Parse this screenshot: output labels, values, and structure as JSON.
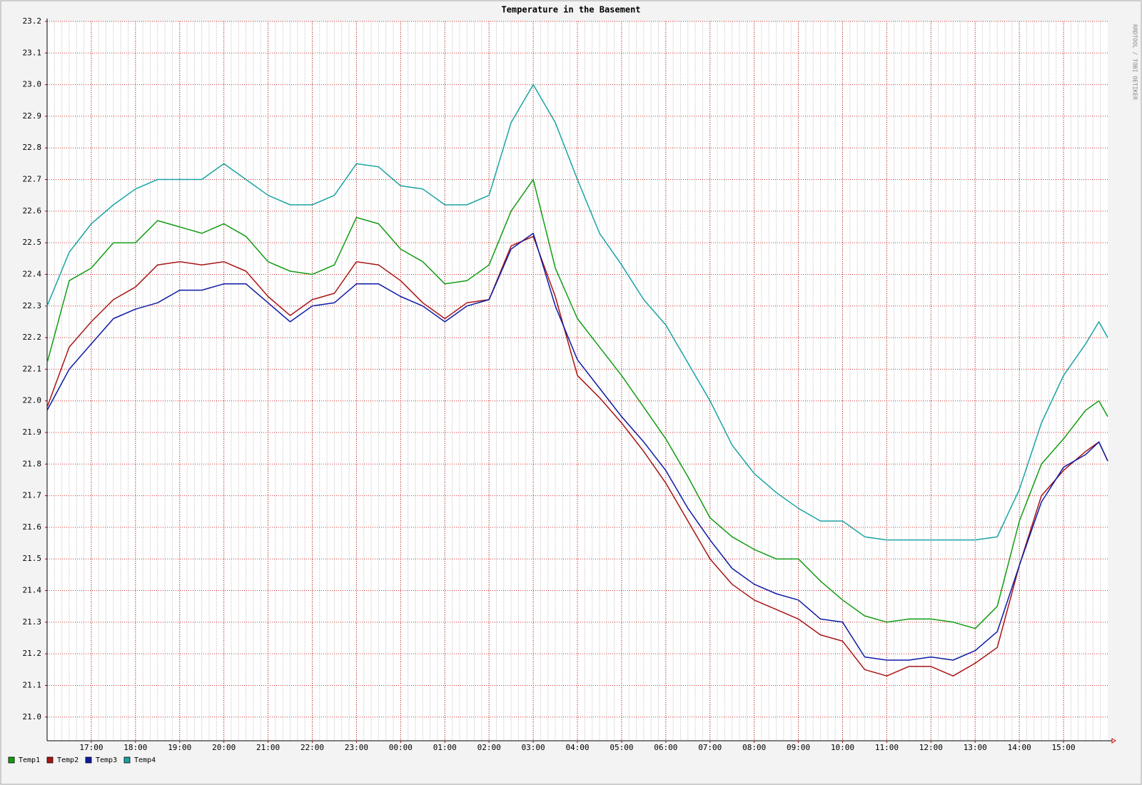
{
  "chart_data": {
    "type": "line",
    "title": "Temperature in the Basement",
    "watermark": "RRDTOOL / TOBI OETIKER",
    "x": [
      16,
      16.5,
      17,
      17.5,
      18,
      18.5,
      19,
      19.5,
      20,
      20.5,
      21,
      21.5,
      22,
      22.5,
      23,
      23.5,
      24,
      24.5,
      25,
      25.5,
      26,
      26.5,
      27,
      27.5,
      28,
      28.5,
      29,
      29.5,
      30,
      30.5,
      31,
      31.5,
      32,
      32.5,
      33,
      33.5,
      34,
      34.5,
      35,
      35.5,
      36,
      36.5,
      37,
      37.5,
      38,
      38.5,
      39,
      39.5,
      39.8,
      40
    ],
    "series": [
      {
        "name": "Temp1",
        "color": "#139c13",
        "values": [
          22.12,
          22.38,
          22.42,
          22.5,
          22.5,
          22.57,
          22.55,
          22.53,
          22.56,
          22.52,
          22.44,
          22.41,
          22.4,
          22.43,
          22.58,
          22.56,
          22.48,
          22.44,
          22.37,
          22.38,
          22.43,
          22.6,
          22.7,
          22.42,
          22.26,
          22.17,
          22.08,
          21.98,
          21.88,
          21.76,
          21.63,
          21.57,
          21.53,
          21.5,
          21.5,
          21.43,
          21.37,
          21.32,
          21.3,
          21.31,
          21.31,
          21.3,
          21.28,
          21.35,
          21.62,
          21.8,
          21.88,
          21.97,
          22.0,
          21.95
        ]
      },
      {
        "name": "Temp2",
        "color": "#a81515",
        "values": [
          21.98,
          22.17,
          22.25,
          22.32,
          22.36,
          22.43,
          22.44,
          22.43,
          22.44,
          22.41,
          22.33,
          22.27,
          22.32,
          22.34,
          22.44,
          22.43,
          22.38,
          22.31,
          22.26,
          22.31,
          22.32,
          22.49,
          22.52,
          22.33,
          22.08,
          22.01,
          21.93,
          21.84,
          21.74,
          21.62,
          21.5,
          21.42,
          21.37,
          21.34,
          21.31,
          21.26,
          21.24,
          21.15,
          21.13,
          21.16,
          21.16,
          21.13,
          21.17,
          21.22,
          21.48,
          21.7,
          21.78,
          21.84,
          21.87,
          21.81
        ]
      },
      {
        "name": "Temp3",
        "color": "#0d1ba5",
        "values": [
          21.97,
          22.1,
          22.18,
          22.26,
          22.29,
          22.31,
          22.35,
          22.35,
          22.37,
          22.37,
          22.31,
          22.25,
          22.3,
          22.31,
          22.37,
          22.37,
          22.33,
          22.3,
          22.25,
          22.3,
          22.32,
          22.48,
          22.53,
          22.3,
          22.13,
          22.04,
          21.95,
          21.87,
          21.78,
          21.66,
          21.56,
          21.47,
          21.42,
          21.39,
          21.37,
          21.31,
          21.3,
          21.19,
          21.18,
          21.18,
          21.19,
          21.18,
          21.21,
          21.27,
          21.48,
          21.68,
          21.79,
          21.83,
          21.87,
          21.81
        ]
      },
      {
        "name": "Temp4",
        "color": "#1ba3a3",
        "values": [
          22.3,
          22.47,
          22.56,
          22.62,
          22.67,
          22.7,
          22.7,
          22.7,
          22.75,
          22.7,
          22.65,
          22.62,
          22.62,
          22.65,
          22.75,
          22.74,
          22.68,
          22.67,
          22.62,
          22.62,
          22.65,
          22.88,
          23.0,
          22.88,
          22.7,
          22.53,
          22.43,
          22.32,
          22.24,
          22.12,
          22.0,
          21.86,
          21.77,
          21.71,
          21.66,
          21.62,
          21.62,
          21.57,
          21.56,
          21.56,
          21.56,
          21.56,
          21.56,
          21.57,
          21.72,
          21.93,
          22.08,
          22.18,
          22.25,
          22.2
        ]
      }
    ],
    "xlim": [
      16,
      40
    ],
    "xticks": [
      {
        "value": 17,
        "label": "17:00"
      },
      {
        "value": 18,
        "label": "18:00"
      },
      {
        "value": 19,
        "label": "19:00"
      },
      {
        "value": 20,
        "label": "20:00"
      },
      {
        "value": 21,
        "label": "21:00"
      },
      {
        "value": 22,
        "label": "22:00"
      },
      {
        "value": 23,
        "label": "23:00"
      },
      {
        "value": 24,
        "label": "00:00"
      },
      {
        "value": 25,
        "label": "01:00"
      },
      {
        "value": 26,
        "label": "02:00"
      },
      {
        "value": 27,
        "label": "03:00"
      },
      {
        "value": 28,
        "label": "04:00"
      },
      {
        "value": 29,
        "label": "05:00"
      },
      {
        "value": 30,
        "label": "06:00"
      },
      {
        "value": 31,
        "label": "07:00"
      },
      {
        "value": 32,
        "label": "08:00"
      },
      {
        "value": 33,
        "label": "09:00"
      },
      {
        "value": 34,
        "label": "10:00"
      },
      {
        "value": 35,
        "label": "11:00"
      },
      {
        "value": 36,
        "label": "12:00"
      },
      {
        "value": 37,
        "label": "13:00"
      },
      {
        "value": 38,
        "label": "14:00"
      },
      {
        "value": 39,
        "label": "15:00"
      }
    ],
    "ylim": [
      20.925,
      23.2
    ],
    "yticks": [
      {
        "value": 21,
        "label": "21.0"
      },
      21.1,
      21.2,
      21.3,
      21.4,
      21.5,
      21.6,
      21.7,
      21.8,
      21.9,
      {
        "value": 22,
        "label": "22.0"
      },
      22.1,
      22.2,
      22.3,
      22.4,
      22.5,
      22.6,
      22.7,
      22.8,
      22.9,
      {
        "value": 23,
        "label": "23.0"
      },
      23.1,
      23.2
    ],
    "grid": true,
    "legend": "bottom-left"
  }
}
